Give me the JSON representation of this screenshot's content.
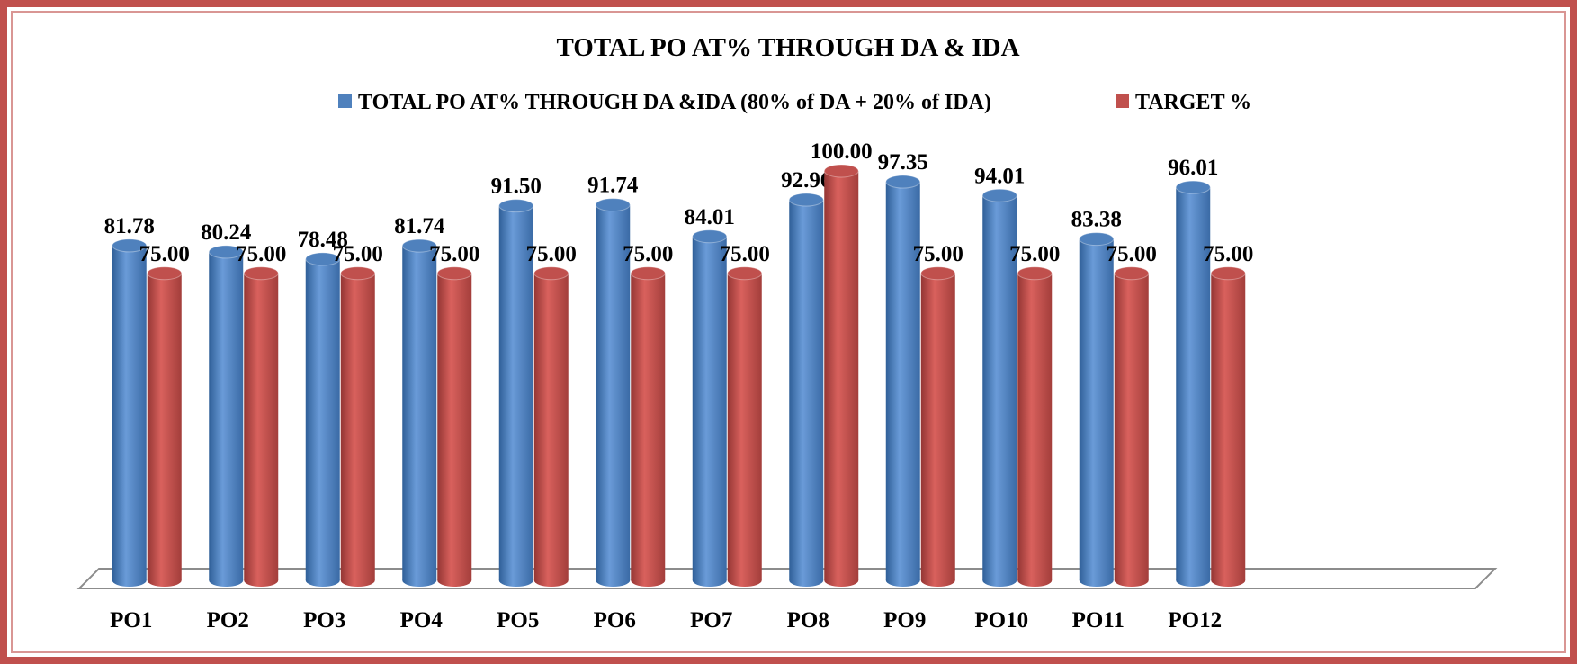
{
  "chart_data": {
    "type": "bar3d",
    "title": "TOTAL PO  AT% THROUGH DA & IDA",
    "categories": [
      "PO1",
      "PO2",
      "PO3",
      "PO4",
      "PO5",
      "PO6",
      "PO7",
      "PO8",
      "PO9",
      "PO10",
      "PO11",
      "PO12"
    ],
    "series": [
      {
        "name": "TOTAL PO  AT% THROUGH DA &IDA (80% of DA + 20% of IDA)",
        "color": "#4f81bd",
        "values": [
          81.78,
          80.24,
          78.48,
          81.74,
          91.5,
          91.74,
          84.01,
          92.96,
          97.35,
          94.01,
          83.38,
          96.01
        ],
        "value_labels": [
          "81.78",
          "80.24",
          "78.48",
          "81.74",
          "91.50",
          "91.74",
          "84.01",
          "92.96",
          "97.35",
          "94.01",
          "83.38",
          "96.01"
        ]
      },
      {
        "name": "TARGET %",
        "color": "#c0504d",
        "values": [
          75,
          75,
          75,
          75,
          75,
          75,
          75,
          100,
          75,
          75,
          75,
          75
        ],
        "value_labels": [
          "75.00",
          "75.00",
          "75.00",
          "75.00",
          "75.00",
          "75.00",
          "75.00",
          "100.00",
          "75.00",
          "75.00",
          "75.00",
          "75.00"
        ]
      }
    ]
  }
}
